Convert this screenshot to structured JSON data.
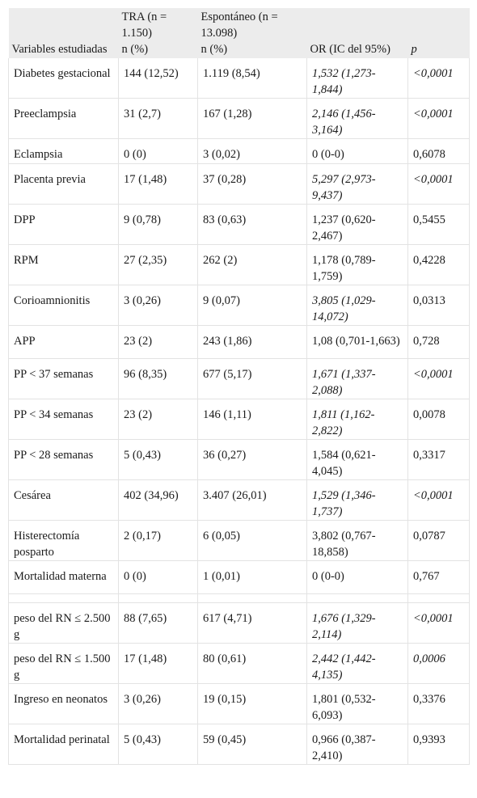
{
  "header": {
    "top": [
      "",
      "TRA (n = 1.150)",
      "Espontáneo (n = 13.098)",
      "",
      ""
    ],
    "bottom": [
      "Variables estudiadas",
      "n (%)",
      "n (%)",
      "OR (IC del 95%)",
      "p"
    ]
  },
  "rows": [
    {
      "cells": [
        "Diabetes gestacional",
        "144 (12,52)",
        "1.119 (8,54)",
        "1,532 (1,273-1,844)",
        "<0,0001"
      ],
      "italic_or": true,
      "italic_p": true
    },
    {
      "cells": [
        "Preeclampsia",
        "31 (2,7)",
        "167 (1,28)",
        "2,146 (1,456-3,164)",
        "<0,0001"
      ],
      "italic_or": true,
      "italic_p": true
    },
    {
      "cells": [
        "Eclampsia",
        "0 (0)",
        "3 (0,02)",
        "0 (0-0)",
        "0,6078"
      ],
      "italic_or": false,
      "italic_p": false
    },
    {
      "cells": [
        "Placenta previa",
        "17 (1,48)",
        "37 (0,28)",
        "5,297 (2,973-9,437)",
        "<0,0001"
      ],
      "italic_or": true,
      "italic_p": true
    },
    {
      "cells": [
        "DPP",
        "9 (0,78)",
        "83 (0,63)",
        "1,237 (0,620-2,467)",
        "0,5455"
      ],
      "italic_or": false,
      "italic_p": false
    },
    {
      "cells": [
        "RPM",
        "27 (2,35)",
        "262 (2)",
        "1,178 (0,789-1,759)",
        "0,4228"
      ],
      "italic_or": false,
      "italic_p": false
    },
    {
      "cells": [
        "Corioamnionitis",
        "3 (0,26)",
        "9 (0,07)",
        "3,805 (1,029-14,072)",
        "0,0313"
      ],
      "italic_or": true,
      "italic_p": false
    },
    {
      "cells": [
        "APP",
        "23 (2)",
        "243 (1,86)",
        "1,08 (0,701-1,663)",
        "0,728"
      ],
      "italic_or": false,
      "italic_p": false
    },
    {
      "cells": [
        "PP < 37 semanas",
        "96 (8,35)",
        "677 (5,17)",
        "1,671 (1,337-2,088)",
        "<0,0001"
      ],
      "italic_or": true,
      "italic_p": true
    },
    {
      "cells": [
        "PP < 34 semanas",
        "23 (2)",
        "146 (1,11)",
        "1,811 (1,162-2,822)",
        "0,0078"
      ],
      "italic_or": true,
      "italic_p": false
    },
    {
      "cells": [
        "PP < 28 semanas",
        "5 (0,43)",
        "36 (0,27)",
        "1,584 (0,621-4,045)",
        "0,3317"
      ],
      "italic_or": false,
      "italic_p": false
    },
    {
      "cells": [
        "Cesárea",
        "402 (34,96)",
        "3.407 (26,01)",
        "1,529 (1,346-1,737)",
        "<0,0001"
      ],
      "italic_or": true,
      "italic_p": true
    },
    {
      "cells": [
        "Histerectomía posparto",
        "2 (0,17)",
        "6 (0,05)",
        "3,802 (0,767-18,858)",
        "0,0787"
      ],
      "italic_or": false,
      "italic_p": false
    },
    {
      "cells": [
        "Mortalidad materna",
        "0 (0)",
        "1 (0,01)",
        "0 (0-0)",
        "0,767"
      ],
      "italic_or": false,
      "italic_p": false
    },
    {
      "spacer": true
    },
    {
      "cells": [
        "peso del RN ≤ 2.500 g",
        "88 (7,65)",
        "617 (4,71)",
        "1,676 (1,329-2,114)",
        "<0,0001"
      ],
      "italic_or": true,
      "italic_p": true
    },
    {
      "cells": [
        "peso del RN ≤ 1.500 g",
        "17 (1,48)",
        "80 (0,61)",
        "2,442 (1,442-4,135)",
        "0,0006"
      ],
      "italic_or": true,
      "italic_p": true
    },
    {
      "cells": [
        "Ingreso en neonatos",
        "3 (0,26)",
        "19 (0,15)",
        "1,801 (0,532-6,093)",
        "0,3376"
      ],
      "italic_or": false,
      "italic_p": false
    },
    {
      "cells": [
        "Mortalidad perinatal",
        "5 (0,43)",
        "59 (0,45)",
        "0,966 (0,387-2,410)",
        "0,9393"
      ],
      "italic_or": false,
      "italic_p": false
    }
  ]
}
